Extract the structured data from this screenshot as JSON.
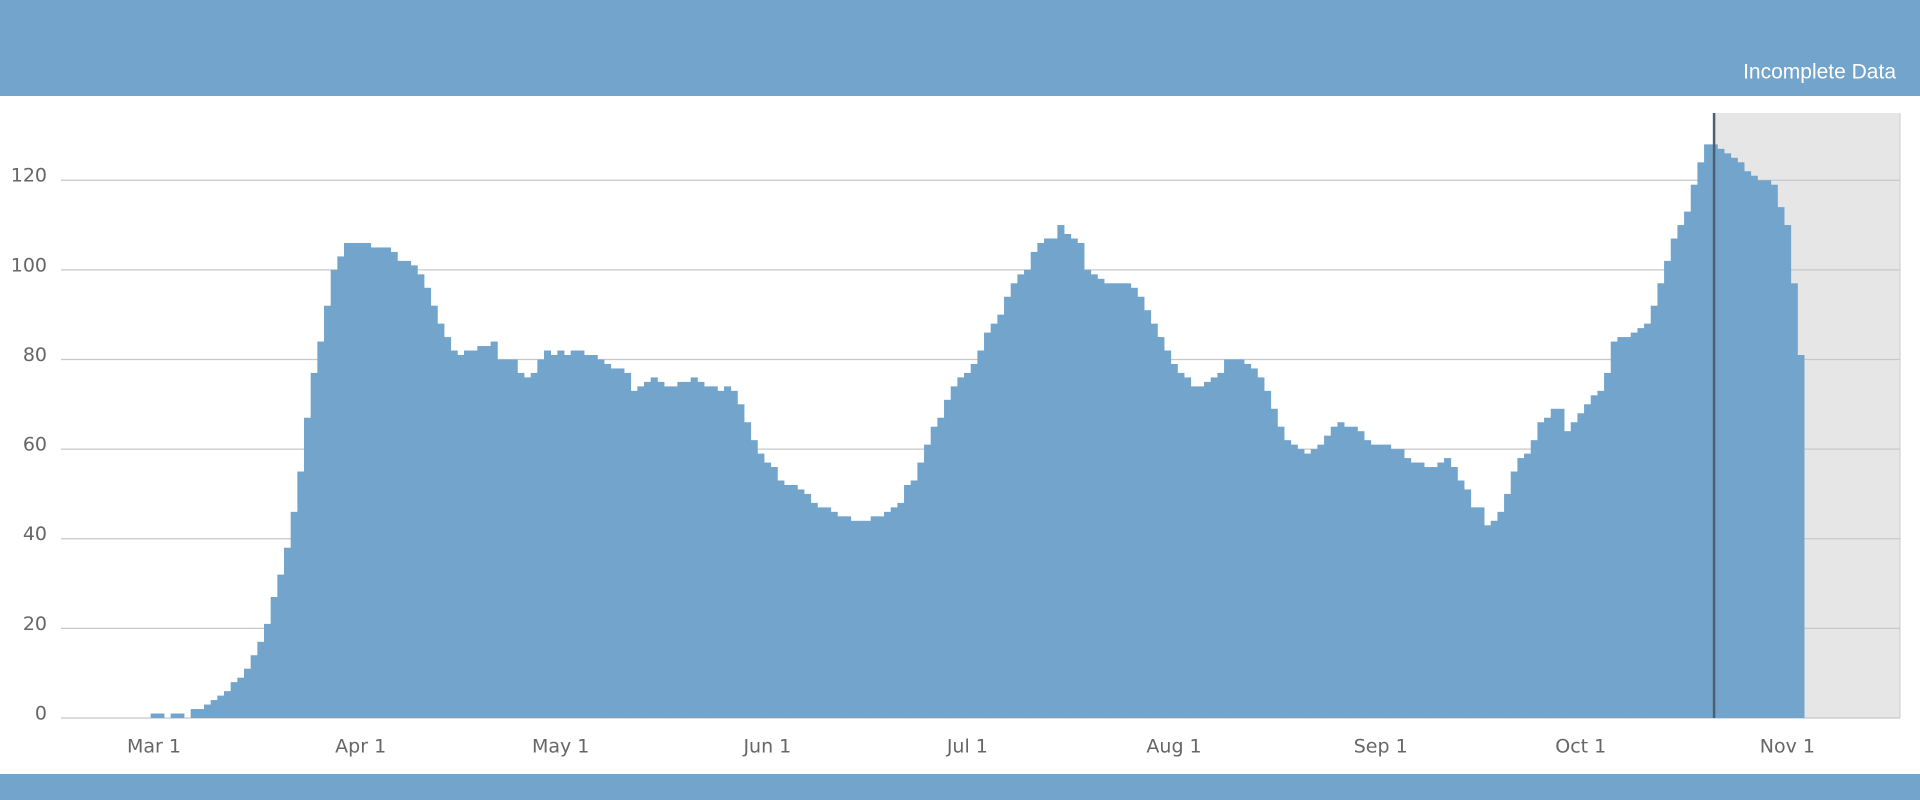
{
  "chart_data": {
    "type": "bar",
    "categories": [
      "Mar 1",
      null,
      null,
      null,
      null,
      null,
      null,
      null,
      null,
      null,
      null,
      null,
      null,
      null,
      null,
      null,
      null,
      null,
      null,
      null,
      null,
      null,
      null,
      null,
      null,
      null,
      null,
      null,
      null,
      null,
      null,
      "Apr 1",
      null,
      null,
      null,
      null,
      null,
      null,
      null,
      null,
      null,
      null,
      null,
      null,
      null,
      null,
      null,
      null,
      null,
      null,
      null,
      null,
      null,
      null,
      null,
      null,
      null,
      null,
      null,
      null,
      null,
      "May 1",
      null,
      null,
      null,
      null,
      null,
      null,
      null,
      null,
      null,
      null,
      null,
      null,
      null,
      null,
      null,
      null,
      null,
      null,
      null,
      null,
      null,
      null,
      null,
      null,
      null,
      null,
      null,
      null,
      null,
      null,
      "Jun 1",
      null,
      null,
      null,
      null,
      null,
      null,
      null,
      null,
      null,
      null,
      null,
      null,
      null,
      null,
      null,
      null,
      null,
      null,
      null,
      null,
      null,
      null,
      null,
      null,
      null,
      null,
      null,
      null,
      null,
      "Jul 1",
      null,
      null,
      null,
      null,
      null,
      null,
      null,
      null,
      null,
      null,
      null,
      null,
      null,
      null,
      null,
      null,
      null,
      null,
      null,
      null,
      null,
      null,
      null,
      null,
      null,
      null,
      null,
      null,
      null,
      null,
      "Aug 1",
      null,
      null,
      null,
      null,
      null,
      null,
      null,
      null,
      null,
      null,
      null,
      null,
      null,
      null,
      null,
      null,
      null,
      null,
      null,
      null,
      null,
      null,
      null,
      null,
      null,
      null,
      null,
      null,
      null,
      null,
      "Sep 1",
      null,
      null,
      null,
      null,
      null,
      null,
      null,
      null,
      null,
      null,
      null,
      null,
      null,
      null,
      null,
      null,
      null,
      null,
      null,
      null,
      null,
      null,
      null,
      null,
      null,
      null,
      null,
      null,
      null,
      "Oct 1",
      null,
      null,
      null,
      null,
      null,
      null,
      null,
      null,
      null,
      null,
      null,
      null,
      null,
      null,
      null,
      null,
      null,
      null,
      null,
      null,
      null,
      null,
      null,
      null,
      null,
      null,
      null,
      null,
      null,
      null,
      "Nov 1",
      null,
      null
    ],
    "values": [
      1,
      1,
      0,
      1,
      1,
      0,
      2,
      2,
      3,
      4,
      5,
      6,
      8,
      9,
      11,
      14,
      17,
      21,
      27,
      32,
      38,
      46,
      55,
      67,
      77,
      84,
      92,
      100,
      103,
      106,
      106,
      106,
      106,
      105,
      105,
      105,
      104,
      102,
      102,
      101,
      99,
      96,
      92,
      88,
      85,
      82,
      81,
      82,
      82,
      83,
      83,
      84,
      80,
      80,
      80,
      77,
      76,
      77,
      80,
      82,
      81,
      82,
      81,
      82,
      82,
      81,
      81,
      80,
      79,
      78,
      78,
      77,
      73,
      74,
      75,
      76,
      75,
      74,
      74,
      75,
      75,
      76,
      75,
      74,
      74,
      73,
      74,
      73,
      70,
      66,
      62,
      59,
      57,
      56,
      53,
      52,
      52,
      51,
      50,
      48,
      47,
      47,
      46,
      45,
      45,
      44,
      44,
      44,
      45,
      45,
      46,
      47,
      48,
      52,
      53,
      57,
      61,
      65,
      67,
      71,
      74,
      76,
      77,
      79,
      82,
      86,
      88,
      90,
      94,
      97,
      99,
      100,
      104,
      106,
      107,
      107,
      110,
      108,
      107,
      106,
      100,
      99,
      98,
      97,
      97,
      97,
      97,
      96,
      94,
      91,
      88,
      85,
      82,
      79,
      77,
      76,
      74,
      74,
      75,
      76,
      77,
      80,
      80,
      80,
      79,
      78,
      76,
      73,
      69,
      65,
      62,
      61,
      60,
      59,
      60,
      61,
      63,
      65,
      66,
      65,
      65,
      64,
      62,
      61,
      61,
      61,
      60,
      60,
      58,
      57,
      57,
      56,
      56,
      57,
      58,
      56,
      53,
      51,
      47,
      47,
      43,
      44,
      46,
      50,
      55,
      58,
      59,
      62,
      66,
      67,
      69,
      69,
      64,
      66,
      68,
      70,
      72,
      73,
      77,
      84,
      85,
      85,
      86,
      87,
      88,
      92,
      97,
      102,
      107,
      110,
      113,
      119,
      124,
      128,
      128,
      127,
      126,
      125,
      124,
      122,
      121,
      120,
      120,
      119,
      114,
      110,
      97,
      81
    ],
    "color": "#73a5cc",
    "ylim": [
      0,
      135
    ],
    "yticks": [
      0,
      20,
      40,
      60,
      80,
      100,
      120
    ],
    "grid": true,
    "incomplete_data": {
      "label": "Incomplete Data",
      "start_index": 234,
      "color": "#e6e6e6",
      "line_color": "#4b5f70"
    },
    "header_color": "#73a5cc"
  }
}
